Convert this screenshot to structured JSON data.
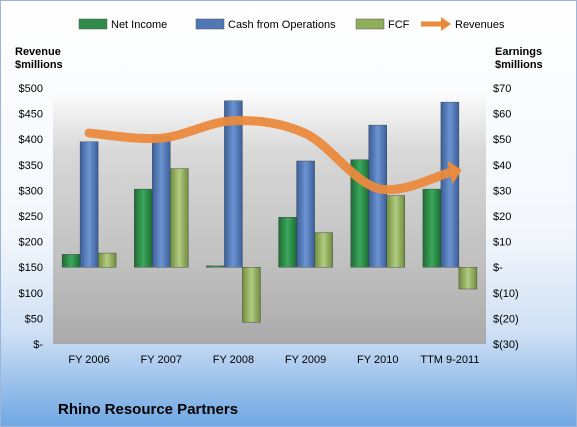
{
  "company_name": "Rhino Resource Partners",
  "chart_data": {
    "type": "bar",
    "categories": [
      "FY 2006",
      "FY 2007",
      "FY 2008",
      "FY 2009",
      "FY 2010",
      "TTM 9-2011"
    ],
    "legend_placement": "top",
    "grid": false,
    "left_axis": {
      "title_lines": [
        "Revenue",
        "$millions"
      ],
      "min": 0,
      "max": 500,
      "step": 50,
      "tick_labels": [
        "$-",
        "$50",
        "$100",
        "$150",
        "$200",
        "$250",
        "$300",
        "$350",
        "$400",
        "$450",
        "$500"
      ]
    },
    "right_axis": {
      "title_lines": [
        "Earnings",
        "$millions"
      ],
      "min": -30,
      "max": 70,
      "step": 10,
      "tick_labels": [
        "$(30)",
        "$(20)",
        "$(10)",
        "$-",
        "$10",
        "$20",
        "$30",
        "$40",
        "$50",
        "$60",
        "$70"
      ]
    },
    "series": [
      {
        "name": "Net Income",
        "kind": "bar",
        "axis": "right",
        "color": "#2e8b4a",
        "values": [
          5,
          30.5,
          0.5,
          19.5,
          42,
          30.5
        ]
      },
      {
        "name": "Cash from Operations",
        "kind": "bar",
        "axis": "right",
        "color": "#4f77b5",
        "values": [
          49,
          51,
          65,
          41.5,
          55.5,
          64.5
        ]
      },
      {
        "name": "FCF",
        "kind": "bar",
        "axis": "right",
        "color": "#8fac5b",
        "values": [
          5.5,
          38.5,
          -21.5,
          13.5,
          28,
          -8.5
        ]
      },
      {
        "name": "Revenues",
        "kind": "line",
        "axis": "left",
        "color": "#ea8a3c",
        "values": [
          412,
          402,
          436,
          411,
          304,
          335
        ]
      }
    ]
  }
}
